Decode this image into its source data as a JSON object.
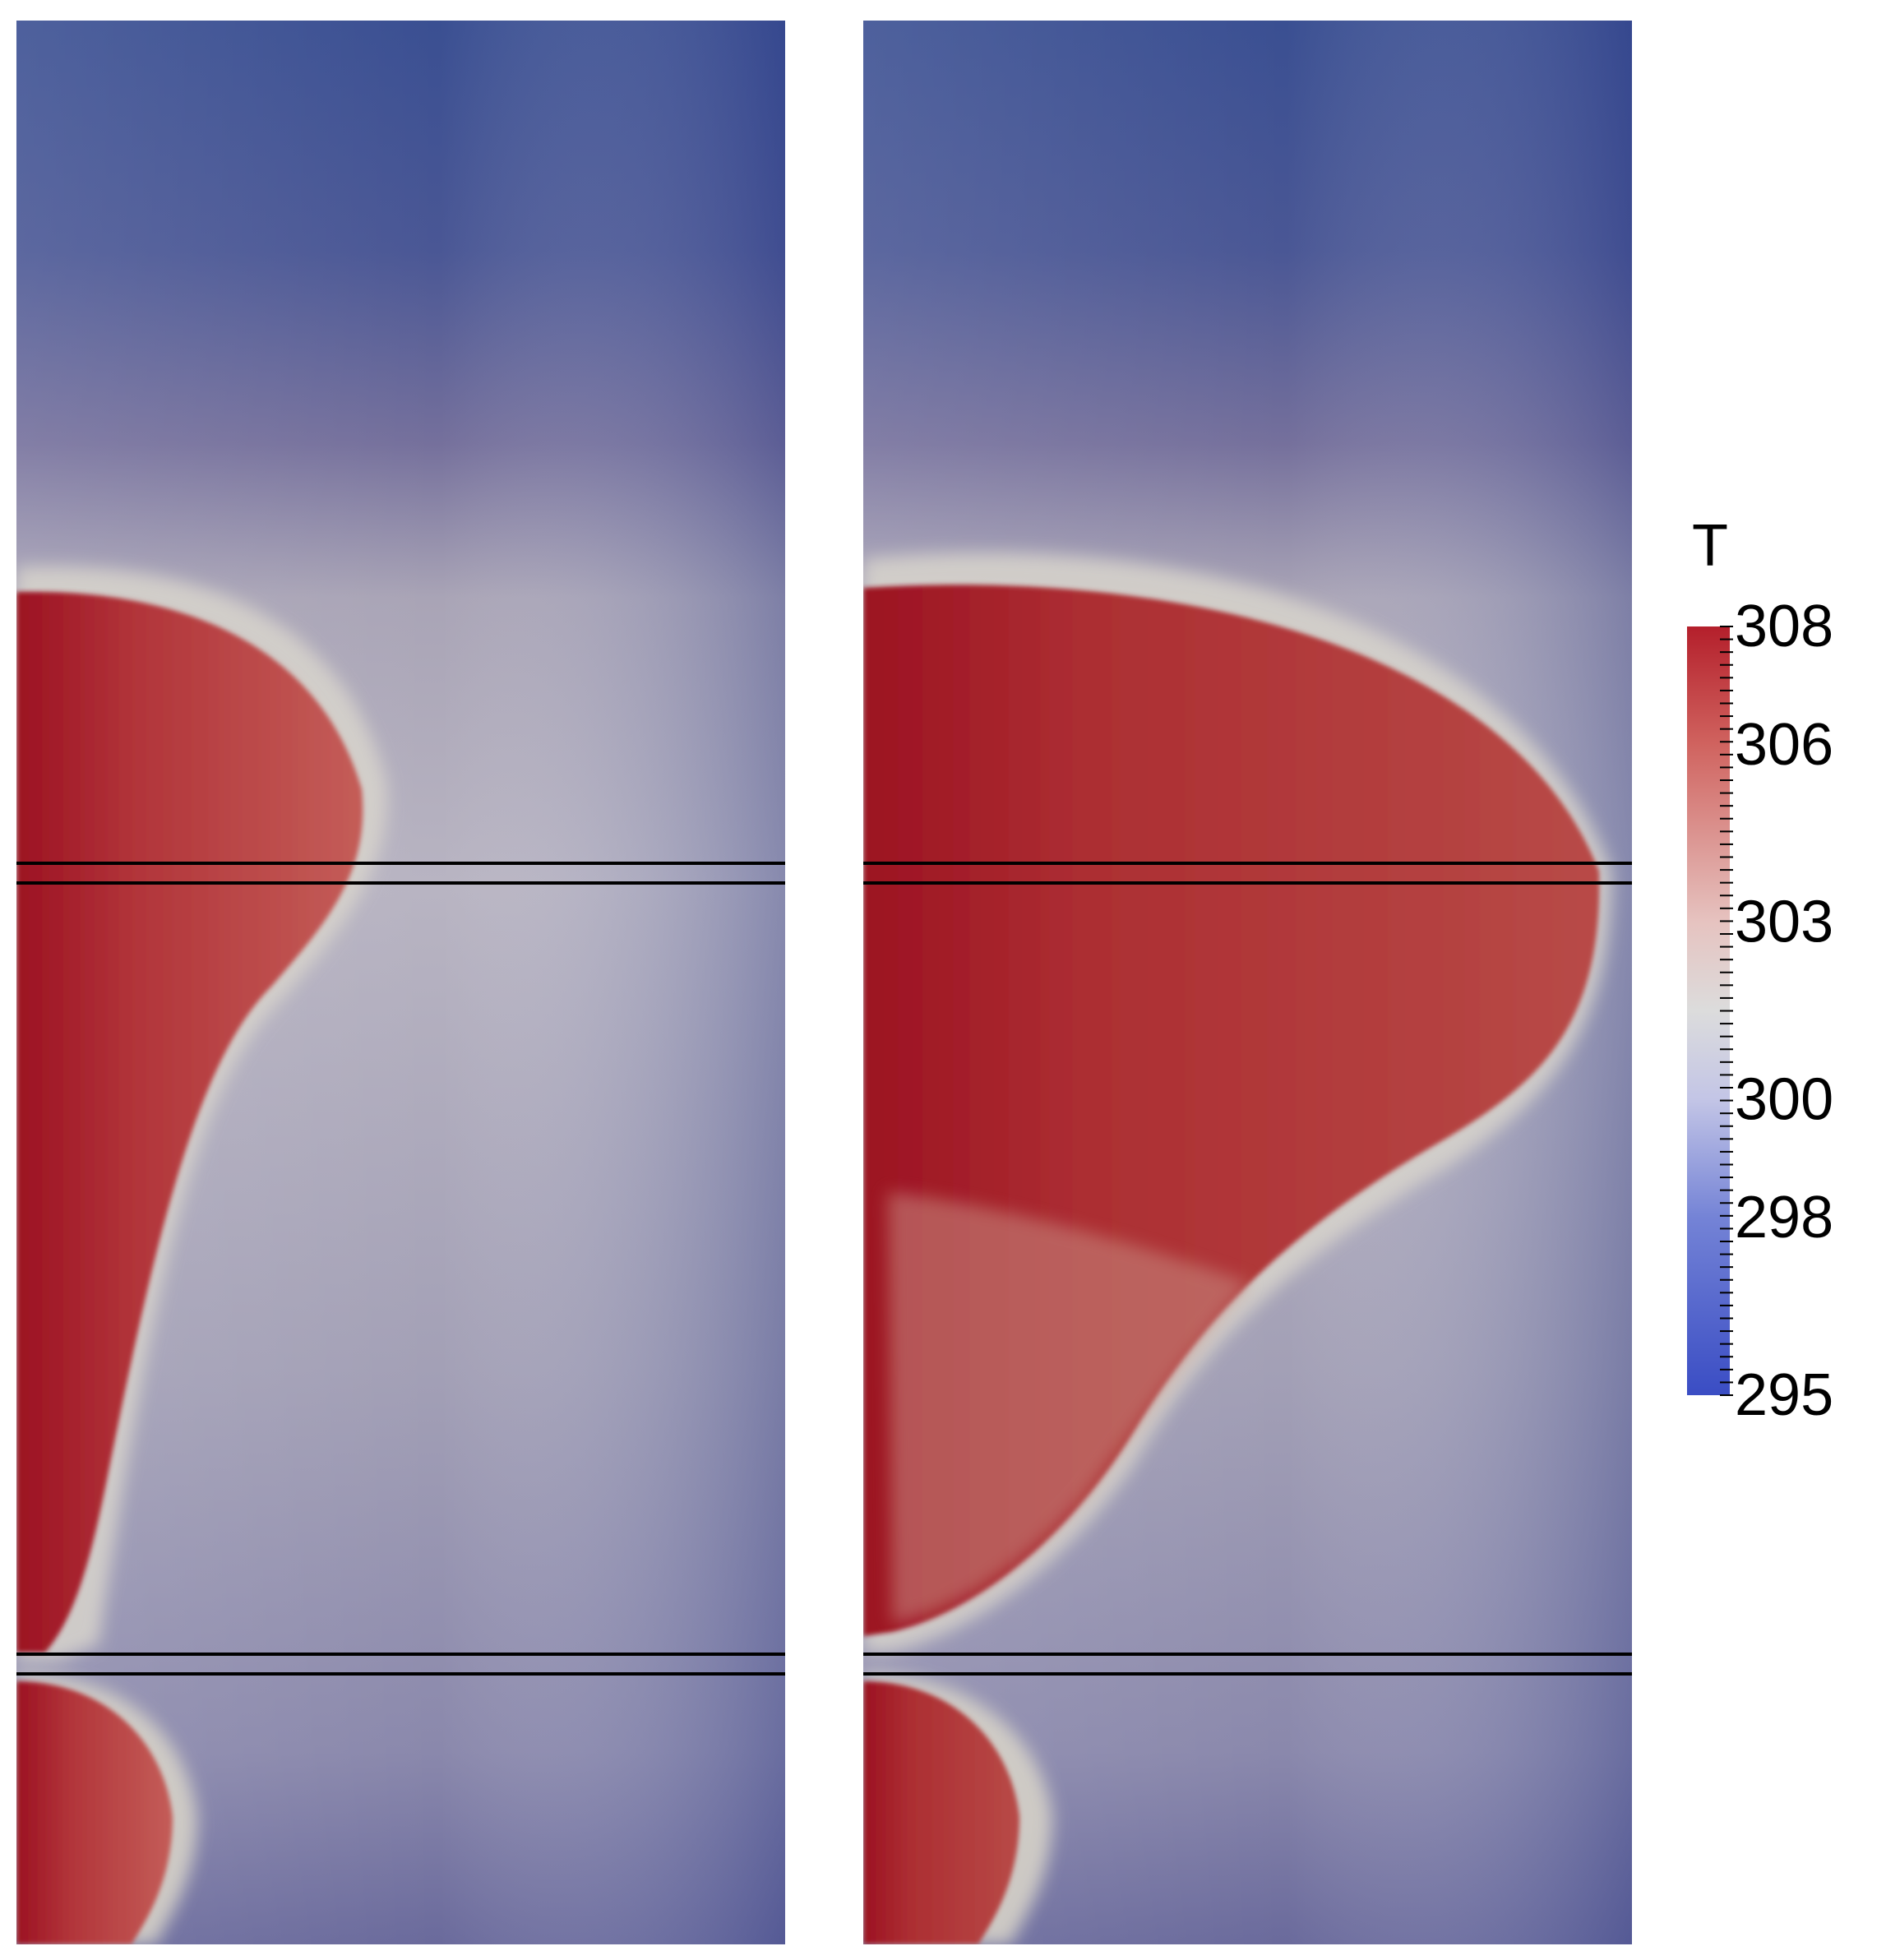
{
  "colors": {
    "hot": "#b41f2b",
    "neutral": "#dcdcdc",
    "cold": "#3f52a8",
    "separator": "#000000",
    "background": "#ffffff"
  },
  "panels": [
    {
      "id": "left",
      "description_variant": "narrow-plume"
    },
    {
      "id": "right",
      "description_variant": "wide-plume"
    }
  ],
  "colorbar": {
    "title": "T",
    "min": 295,
    "max": 308,
    "labels": [
      "308",
      "306",
      "303",
      "300",
      "298",
      "295"
    ],
    "label_values": [
      308,
      306,
      303,
      300,
      298,
      295
    ],
    "stops": [
      {
        "value": 295,
        "color": "#3a4dc4"
      },
      {
        "value": 298,
        "color": "#7483d6"
      },
      {
        "value": 300,
        "color": "#c3c5e6"
      },
      {
        "value": 301.5,
        "color": "#dcdcdc"
      },
      {
        "value": 303,
        "color": "#e6c3c0"
      },
      {
        "value": 306,
        "color": "#d0635f"
      },
      {
        "value": 308,
        "color": "#b41f2b"
      }
    ]
  }
}
